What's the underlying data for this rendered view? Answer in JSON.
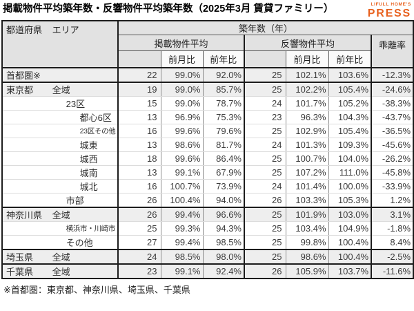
{
  "title": "掲載物件平均築年数・反響物件平均築年数（2025年3月 賃貸ファミリー）",
  "logo": {
    "line1": "LIFULL HOME'S",
    "line2": "PRESS",
    "color": "#E8611E"
  },
  "footnote": "※首都圏：東京都、神奈川県、埼玉県、千葉県",
  "table": {
    "corner_header": {
      "pref": "都道府県",
      "area": "エリア"
    },
    "group_header": "築年数（年）",
    "listed_header": "掲載物件平均",
    "response_header": "反響物件平均",
    "mom_header": "前月比",
    "yoy_header": "前年比",
    "divergence_header": "乖離率",
    "rows": [
      {
        "pref": "首都圏※",
        "area": "",
        "indent": 0,
        "small": false,
        "band": true,
        "thick_below": true,
        "listed_age": "22",
        "listed_mom": "99.0%",
        "listed_yoy": "92.0%",
        "response_age": "25",
        "response_mom": "102.1%",
        "response_yoy": "103.6%",
        "divergence": "-12.3%"
      },
      {
        "pref": "東京都",
        "area": "全域",
        "indent": 0,
        "small": false,
        "band": true,
        "thick_below": false,
        "listed_age": "19",
        "listed_mom": "99.0%",
        "listed_yoy": "85.7%",
        "response_age": "25",
        "response_mom": "102.2%",
        "response_yoy": "105.4%",
        "divergence": "-24.6%"
      },
      {
        "pref": "",
        "area": "23区",
        "indent": 1,
        "small": false,
        "band": false,
        "thick_below": false,
        "listed_age": "15",
        "listed_mom": "99.0%",
        "listed_yoy": "78.7%",
        "response_age": "24",
        "response_mom": "101.7%",
        "response_yoy": "105.2%",
        "divergence": "-38.3%"
      },
      {
        "pref": "",
        "area": "都心6区",
        "indent": 2,
        "small": false,
        "band": false,
        "thick_below": false,
        "listed_age": "13",
        "listed_mom": "96.9%",
        "listed_yoy": "75.3%",
        "response_age": "23",
        "response_mom": "96.3%",
        "response_yoy": "104.3%",
        "divergence": "-43.7%"
      },
      {
        "pref": "",
        "area": "23区その他",
        "indent": 2,
        "small": true,
        "band": false,
        "thick_below": false,
        "listed_age": "16",
        "listed_mom": "99.6%",
        "listed_yoy": "79.6%",
        "response_age": "25",
        "response_mom": "102.9%",
        "response_yoy": "105.4%",
        "divergence": "-36.5%"
      },
      {
        "pref": "",
        "area": "城東",
        "indent": 2,
        "small": false,
        "band": false,
        "thick_below": false,
        "listed_age": "13",
        "listed_mom": "98.6%",
        "listed_yoy": "81.7%",
        "response_age": "24",
        "response_mom": "101.3%",
        "response_yoy": "109.3%",
        "divergence": "-45.6%"
      },
      {
        "pref": "",
        "area": "城西",
        "indent": 2,
        "small": false,
        "band": false,
        "thick_below": false,
        "listed_age": "18",
        "listed_mom": "99.6%",
        "listed_yoy": "86.4%",
        "response_age": "25",
        "response_mom": "100.7%",
        "response_yoy": "104.0%",
        "divergence": "-26.2%"
      },
      {
        "pref": "",
        "area": "城南",
        "indent": 2,
        "small": false,
        "band": false,
        "thick_below": false,
        "listed_age": "13",
        "listed_mom": "99.1%",
        "listed_yoy": "67.9%",
        "response_age": "25",
        "response_mom": "107.2%",
        "response_yoy": "111.0%",
        "divergence": "-45.8%"
      },
      {
        "pref": "",
        "area": "城北",
        "indent": 2,
        "small": false,
        "band": false,
        "thick_below": false,
        "listed_age": "16",
        "listed_mom": "100.7%",
        "listed_yoy": "73.9%",
        "response_age": "24",
        "response_mom": "101.4%",
        "response_yoy": "100.0%",
        "divergence": "-33.9%"
      },
      {
        "pref": "",
        "area": "市部",
        "indent": 1,
        "small": false,
        "band": false,
        "thick_below": true,
        "listed_age": "26",
        "listed_mom": "100.4%",
        "listed_yoy": "94.0%",
        "response_age": "26",
        "response_mom": "103.3%",
        "response_yoy": "105.3%",
        "divergence": "1.2%"
      },
      {
        "pref": "神奈川県",
        "area": "全域",
        "indent": 0,
        "small": false,
        "band": true,
        "thick_below": false,
        "listed_age": "26",
        "listed_mom": "99.4%",
        "listed_yoy": "96.6%",
        "response_age": "25",
        "response_mom": "101.9%",
        "response_yoy": "103.0%",
        "divergence": "3.1%"
      },
      {
        "pref": "",
        "area": "横浜市・川崎市",
        "indent": 1,
        "small": true,
        "band": false,
        "thick_below": false,
        "listed_age": "25",
        "listed_mom": "99.3%",
        "listed_yoy": "94.3%",
        "response_age": "25",
        "response_mom": "103.4%",
        "response_yoy": "104.9%",
        "divergence": "-1.8%"
      },
      {
        "pref": "",
        "area": "その他",
        "indent": 1,
        "small": false,
        "band": false,
        "thick_below": true,
        "listed_age": "27",
        "listed_mom": "99.4%",
        "listed_yoy": "98.5%",
        "response_age": "25",
        "response_mom": "99.8%",
        "response_yoy": "100.4%",
        "divergence": "8.4%"
      },
      {
        "pref": "埼玉県",
        "area": "全域",
        "indent": 0,
        "small": false,
        "band": true,
        "thick_below": true,
        "listed_age": "24",
        "listed_mom": "98.5%",
        "listed_yoy": "98.0%",
        "response_age": "25",
        "response_mom": "98.6%",
        "response_yoy": "100.4%",
        "divergence": "-2.5%"
      },
      {
        "pref": "千葉県",
        "area": "全域",
        "indent": 0,
        "small": false,
        "band": true,
        "thick_below": false,
        "listed_age": "23",
        "listed_mom": "99.1%",
        "listed_yoy": "92.4%",
        "response_age": "26",
        "response_mom": "105.9%",
        "response_yoy": "103.7%",
        "divergence": "-11.6%"
      }
    ]
  }
}
